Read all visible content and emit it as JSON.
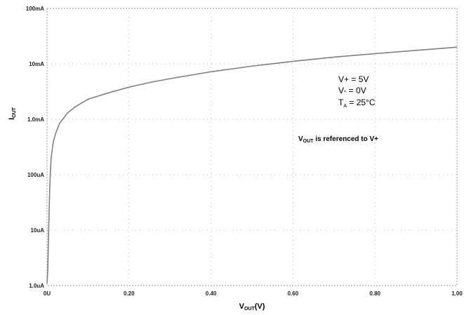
{
  "chart_data": {
    "type": "line",
    "title": "",
    "xlabel": {
      "main": "V",
      "sub": "OUT",
      "suffix": "(V)"
    },
    "ylabel": {
      "main": "I",
      "sub": "OUT"
    },
    "x_scale": "linear",
    "y_scale": "log",
    "xlim": [
      0,
      1.0
    ],
    "ylim": [
      1e-06,
      0.1
    ],
    "x_ticks": [
      {
        "value": 0.0,
        "label": "0U"
      },
      {
        "value": 0.2,
        "label": "0.20"
      },
      {
        "value": 0.4,
        "label": "0.40"
      },
      {
        "value": 0.6,
        "label": "0.60"
      },
      {
        "value": 0.8,
        "label": "0.80"
      },
      {
        "value": 1.0,
        "label": "1.00"
      }
    ],
    "y_ticks": [
      {
        "value": 1e-06,
        "label": "1.0uA"
      },
      {
        "value": 1e-05,
        "label": "10uA"
      },
      {
        "value": 0.0001,
        "label": "100uA"
      },
      {
        "value": 0.001,
        "label": "1.0mA"
      },
      {
        "value": 0.01,
        "label": "10mA"
      },
      {
        "value": 0.1,
        "label": "100mA"
      }
    ],
    "grid": true,
    "series": [
      {
        "color": "#808080",
        "x": [
          0.0,
          0.002,
          0.003,
          0.005,
          0.007,
          0.01,
          0.015,
          0.02,
          0.03,
          0.05,
          0.07,
          0.1,
          0.15,
          0.2,
          0.25,
          0.3,
          0.4,
          0.5,
          0.6,
          0.7,
          0.8,
          0.9,
          1.0
        ],
        "y": [
          1.1e-06,
          2e-06,
          5e-06,
          2e-05,
          7e-05,
          0.0002,
          0.00038,
          0.00053,
          0.00083,
          0.0013,
          0.0017,
          0.0023,
          0.003,
          0.0038,
          0.0046,
          0.0054,
          0.0072,
          0.0091,
          0.0111,
          0.0132,
          0.0153,
          0.0175,
          0.02
        ]
      }
    ],
    "annotations": [
      {
        "main": "V+ = 5V",
        "sub": "",
        "rest": ""
      },
      {
        "main": "V- = 0V",
        "sub": "",
        "rest": ""
      },
      {
        "main": "T",
        "sub": "A",
        "rest": " = 25°C"
      }
    ],
    "note": {
      "main": "V",
      "sub": "OUT",
      "rest": " is referenced to V+"
    }
  }
}
